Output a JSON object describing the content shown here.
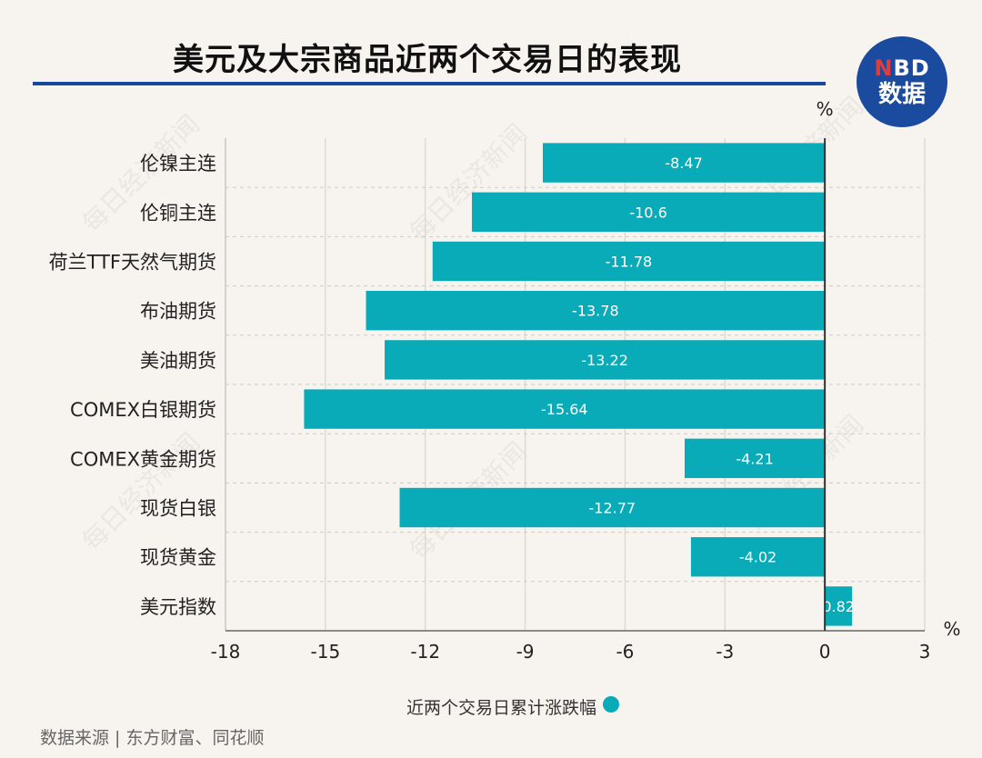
{
  "header": {
    "title": "美元及大宗商品近两个交易日的表现",
    "logo_line1_n": "N",
    "logo_line1_rest": "BD",
    "logo_line2": "数据"
  },
  "watermark_text": "每日经济新闻",
  "source": "数据来源 | 东方财富、同花顺",
  "colors": {
    "bar": "#0aabb8",
    "rule": "#17479e",
    "logo": "#1a4b9e",
    "background": "#f7f4ef"
  },
  "chart_data": {
    "type": "bar",
    "orientation": "horizontal",
    "categories": [
      "伦镍主连",
      "伦铜主连",
      "荷兰TTF天然气期货",
      "布油期货",
      "美油期货",
      "COMEX白银期货",
      "COMEX黄金期货",
      "现货白银",
      "现货黄金",
      "美元指数"
    ],
    "series": [
      {
        "name": "近两个交易日累计涨跌幅",
        "values": [
          -8.47,
          -10.6,
          -11.78,
          -13.78,
          -13.22,
          -15.64,
          -4.21,
          -12.77,
          -4.02,
          0.82
        ]
      }
    ],
    "value_labels": [
      "-8.47",
      "-10.6",
      "-11.78",
      "-13.78",
      "-13.22",
      "-15.64",
      "-4.21",
      "-12.77",
      "-4.02",
      "0.82"
    ],
    "x_ticks": [
      -18,
      -15,
      -12,
      -9,
      -6,
      -3,
      0,
      3
    ],
    "xlim": [
      -18,
      3
    ],
    "unit_top": "%",
    "unit_right": "%",
    "grid": true,
    "legend_position": "bottom"
  }
}
